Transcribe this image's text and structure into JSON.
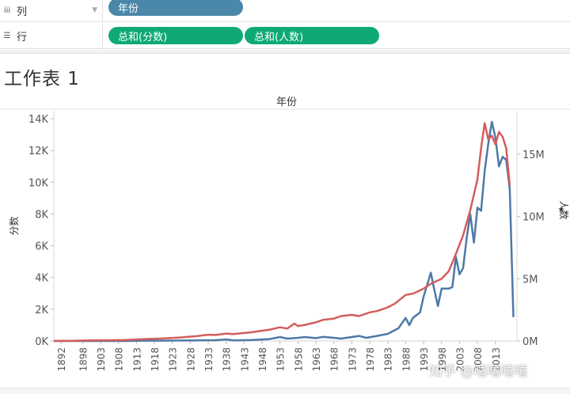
{
  "shelves": {
    "columns": {
      "icon": "columns-icon",
      "label": "列",
      "pill": "年份"
    },
    "rows": {
      "icon": "rows-icon",
      "label": "行",
      "pills": [
        "总和(分数)",
        "总和(人数)"
      ]
    }
  },
  "sheet": {
    "title": "工作表 1"
  },
  "watermark": "知乎 @嘻嘻嘻嘻",
  "colors": {
    "score": "#4e79a7",
    "people": "#d45d5d",
    "pill_dimension": "#4a87a8",
    "pill_measure": "#0fa977"
  },
  "chart_data": {
    "type": "line",
    "title": "年份",
    "x_ticks": [
      1892,
      1898,
      1903,
      1908,
      1913,
      1918,
      1923,
      1928,
      1933,
      1938,
      1943,
      1948,
      1953,
      1958,
      1963,
      1968,
      1973,
      1978,
      1983,
      1988,
      1993,
      1998,
      2003,
      2008,
      2013
    ],
    "xlim": [
      1890,
      2019
    ],
    "y_left": {
      "label": "分数",
      "ticks": [
        "0K",
        "2K",
        "4K",
        "6K",
        "8K",
        "10K",
        "12K",
        "14K"
      ],
      "lim": [
        0,
        14500
      ]
    },
    "y_right": {
      "label": "人数",
      "ticks": [
        "0M",
        "5M",
        "10M",
        "15M"
      ],
      "lim": [
        0,
        18500000
      ]
    },
    "series": [
      {
        "key": "score",
        "axis": "left",
        "points": [
          [
            1890,
            0
          ],
          [
            1895,
            0
          ],
          [
            1900,
            0
          ],
          [
            1905,
            0
          ],
          [
            1910,
            0
          ],
          [
            1915,
            20
          ],
          [
            1920,
            20
          ],
          [
            1925,
            30
          ],
          [
            1930,
            40
          ],
          [
            1935,
            50
          ],
          [
            1938,
            100
          ],
          [
            1940,
            40
          ],
          [
            1945,
            60
          ],
          [
            1950,
            120
          ],
          [
            1953,
            250
          ],
          [
            1955,
            150
          ],
          [
            1958,
            200
          ],
          [
            1960,
            250
          ],
          [
            1963,
            180
          ],
          [
            1965,
            260
          ],
          [
            1968,
            200
          ],
          [
            1970,
            150
          ],
          [
            1973,
            250
          ],
          [
            1975,
            320
          ],
          [
            1977,
            200
          ],
          [
            1980,
            320
          ],
          [
            1983,
            450
          ],
          [
            1986,
            800
          ],
          [
            1988,
            1450
          ],
          [
            1989,
            1000
          ],
          [
            1990,
            1450
          ],
          [
            1992,
            1800
          ],
          [
            1993,
            2800
          ],
          [
            1995,
            4300
          ],
          [
            1996,
            3200
          ],
          [
            1997,
            2200
          ],
          [
            1998,
            3300
          ],
          [
            2000,
            3300
          ],
          [
            2001,
            3400
          ],
          [
            2002,
            5300
          ],
          [
            2003,
            4200
          ],
          [
            2004,
            4600
          ],
          [
            2005,
            6500
          ],
          [
            2006,
            8000
          ],
          [
            2007,
            6200
          ],
          [
            2008,
            8400
          ],
          [
            2009,
            8200
          ],
          [
            2010,
            10700
          ],
          [
            2011,
            12400
          ],
          [
            2012,
            13800
          ],
          [
            2013,
            12800
          ],
          [
            2014,
            11000
          ],
          [
            2015,
            11600
          ],
          [
            2016,
            11400
          ],
          [
            2017,
            9600
          ],
          [
            2018,
            1500
          ]
        ]
      },
      {
        "key": "people",
        "axis": "right",
        "points": [
          [
            1890,
            0
          ],
          [
            1895,
            20000
          ],
          [
            1900,
            50000
          ],
          [
            1905,
            60000
          ],
          [
            1910,
            80000
          ],
          [
            1915,
            150000
          ],
          [
            1920,
            200000
          ],
          [
            1925,
            280000
          ],
          [
            1930,
            400000
          ],
          [
            1933,
            500000
          ],
          [
            1935,
            480000
          ],
          [
            1938,
            600000
          ],
          [
            1940,
            550000
          ],
          [
            1945,
            700000
          ],
          [
            1950,
            900000
          ],
          [
            1953,
            1100000
          ],
          [
            1955,
            1000000
          ],
          [
            1957,
            1400000
          ],
          [
            1958,
            1200000
          ],
          [
            1960,
            1300000
          ],
          [
            1963,
            1500000
          ],
          [
            1965,
            1700000
          ],
          [
            1968,
            1800000
          ],
          [
            1970,
            2000000
          ],
          [
            1973,
            2100000
          ],
          [
            1975,
            2000000
          ],
          [
            1978,
            2300000
          ],
          [
            1980,
            2400000
          ],
          [
            1983,
            2700000
          ],
          [
            1985,
            3000000
          ],
          [
            1988,
            3700000
          ],
          [
            1990,
            3800000
          ],
          [
            1993,
            4200000
          ],
          [
            1995,
            4600000
          ],
          [
            1998,
            5000000
          ],
          [
            2000,
            5600000
          ],
          [
            2002,
            7000000
          ],
          [
            2004,
            8500000
          ],
          [
            2006,
            10500000
          ],
          [
            2008,
            13000000
          ],
          [
            2009,
            15500000
          ],
          [
            2010,
            17500000
          ],
          [
            2011,
            16200000
          ],
          [
            2012,
            16500000
          ],
          [
            2013,
            15800000
          ],
          [
            2014,
            16800000
          ],
          [
            2015,
            16400000
          ],
          [
            2016,
            15500000
          ],
          [
            2017,
            12500000
          ]
        ]
      }
    ]
  }
}
